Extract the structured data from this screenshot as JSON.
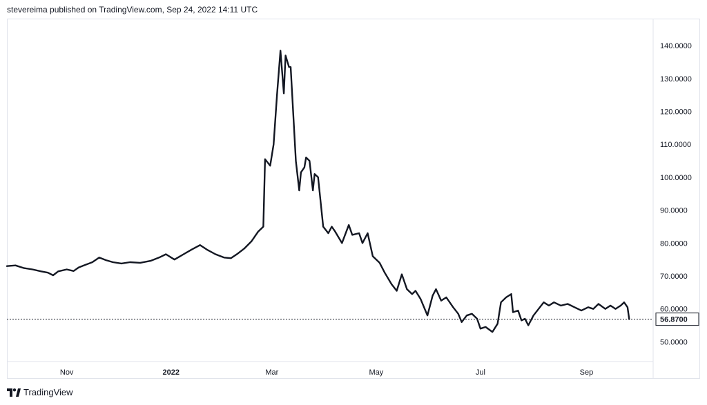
{
  "header": {
    "text": "stevereima published on TradingView.com, Sep 24, 2022 14:11 UTC"
  },
  "footer": {
    "brand": "TradingView"
  },
  "colors": {
    "line": "#131722",
    "axis_border": "#e0e3eb",
    "label_border": "#131722"
  },
  "chart_data": {
    "type": "line",
    "title": "",
    "xlabel": "",
    "ylabel": "",
    "grid": false,
    "ylim": [
      44,
      148
    ],
    "x_range": [
      "2021-09-27",
      "2022-10-10"
    ],
    "y_ticks": [
      "50.0000",
      "60.0000",
      "70.0000",
      "80.0000",
      "90.0000",
      "100.0000",
      "110.0000",
      "120.0000",
      "130.0000",
      "140.0000"
    ],
    "x_ticks": [
      {
        "date": "2021-11-01",
        "label": "Nov",
        "bold": false
      },
      {
        "date": "2022-01-01",
        "label": "2022",
        "bold": true
      },
      {
        "date": "2022-03-01",
        "label": "Mar",
        "bold": false
      },
      {
        "date": "2022-05-01",
        "label": "May",
        "bold": false
      },
      {
        "date": "2022-07-01",
        "label": "Jul",
        "bold": false
      },
      {
        "date": "2022-09-01",
        "label": "Sep",
        "bold": false
      }
    ],
    "last_value": 56.87,
    "last_value_label": "56.8700",
    "series": [
      {
        "values": [
          [
            "2021-09-27",
            73.0
          ],
          [
            "2021-10-02",
            73.2
          ],
          [
            "2021-10-07",
            72.4
          ],
          [
            "2021-10-12",
            72.0
          ],
          [
            "2021-10-17",
            71.4
          ],
          [
            "2021-10-21",
            71.0
          ],
          [
            "2021-10-24",
            70.2
          ],
          [
            "2021-10-27",
            71.4
          ],
          [
            "2021-11-01",
            72.0
          ],
          [
            "2021-11-05",
            71.5
          ],
          [
            "2021-11-08",
            72.6
          ],
          [
            "2021-11-12",
            73.4
          ],
          [
            "2021-11-16",
            74.2
          ],
          [
            "2021-11-20",
            75.6
          ],
          [
            "2021-11-24",
            74.8
          ],
          [
            "2021-11-28",
            74.2
          ],
          [
            "2021-12-03",
            73.8
          ],
          [
            "2021-12-08",
            74.2
          ],
          [
            "2021-12-14",
            74.0
          ],
          [
            "2021-12-20",
            74.6
          ],
          [
            "2021-12-25",
            75.6
          ],
          [
            "2021-12-29",
            76.6
          ],
          [
            "2022-01-03",
            75.0
          ],
          [
            "2022-01-08",
            76.5
          ],
          [
            "2022-01-13",
            78.0
          ],
          [
            "2022-01-18",
            79.4
          ],
          [
            "2022-01-22",
            78.0
          ],
          [
            "2022-01-27",
            76.6
          ],
          [
            "2022-02-01",
            75.6
          ],
          [
            "2022-02-05",
            75.4
          ],
          [
            "2022-02-09",
            76.8
          ],
          [
            "2022-02-13",
            78.4
          ],
          [
            "2022-02-17",
            80.5
          ],
          [
            "2022-02-21",
            83.5
          ],
          [
            "2022-02-24",
            85.0
          ],
          [
            "2022-02-25",
            105.5
          ],
          [
            "2022-02-28",
            103.5
          ],
          [
            "2022-03-02",
            110.0
          ],
          [
            "2022-03-04",
            125.0
          ],
          [
            "2022-03-06",
            138.5
          ],
          [
            "2022-03-08",
            125.5
          ],
          [
            "2022-03-09",
            137.0
          ],
          [
            "2022-03-11",
            133.5
          ],
          [
            "2022-03-12",
            133.5
          ],
          [
            "2022-03-15",
            105.0
          ],
          [
            "2022-03-17",
            96.0
          ],
          [
            "2022-03-18",
            101.5
          ],
          [
            "2022-03-20",
            103.0
          ],
          [
            "2022-03-21",
            106.0
          ],
          [
            "2022-03-23",
            105.0
          ],
          [
            "2022-03-25",
            96.0
          ],
          [
            "2022-03-26",
            101.0
          ],
          [
            "2022-03-28",
            100.0
          ],
          [
            "2022-03-31",
            85.0
          ],
          [
            "2022-04-03",
            83.0
          ],
          [
            "2022-04-05",
            85.0
          ],
          [
            "2022-04-07",
            83.5
          ],
          [
            "2022-04-11",
            80.0
          ],
          [
            "2022-04-15",
            85.5
          ],
          [
            "2022-04-17",
            82.5
          ],
          [
            "2022-04-21",
            83.0
          ],
          [
            "2022-04-23",
            80.0
          ],
          [
            "2022-04-26",
            83.0
          ],
          [
            "2022-04-29",
            76.0
          ],
          [
            "2022-05-03",
            74.0
          ],
          [
            "2022-05-06",
            71.0
          ],
          [
            "2022-05-10",
            67.5
          ],
          [
            "2022-05-13",
            65.5
          ],
          [
            "2022-05-16",
            70.5
          ],
          [
            "2022-05-19",
            66.0
          ],
          [
            "2022-05-22",
            64.5
          ],
          [
            "2022-05-24",
            65.5
          ],
          [
            "2022-05-27",
            63.0
          ],
          [
            "2022-05-31",
            58.0
          ],
          [
            "2022-06-03",
            64.0
          ],
          [
            "2022-06-05",
            66.0
          ],
          [
            "2022-06-08",
            62.5
          ],
          [
            "2022-06-11",
            63.5
          ],
          [
            "2022-06-15",
            60.5
          ],
          [
            "2022-06-18",
            58.5
          ],
          [
            "2022-06-20",
            56.0
          ],
          [
            "2022-06-23",
            58.0
          ],
          [
            "2022-06-26",
            58.5
          ],
          [
            "2022-06-29",
            57.0
          ],
          [
            "2022-07-01",
            54.0
          ],
          [
            "2022-07-04",
            54.5
          ],
          [
            "2022-07-08",
            53.0
          ],
          [
            "2022-07-11",
            55.5
          ],
          [
            "2022-07-13",
            62.0
          ],
          [
            "2022-07-16",
            63.5
          ],
          [
            "2022-07-19",
            64.5
          ],
          [
            "2022-07-20",
            59.0
          ],
          [
            "2022-07-23",
            59.5
          ],
          [
            "2022-07-25",
            56.5
          ],
          [
            "2022-07-27",
            57.0
          ],
          [
            "2022-07-29",
            55.0
          ],
          [
            "2022-08-01",
            58.0
          ],
          [
            "2022-08-04",
            60.0
          ],
          [
            "2022-08-07",
            62.0
          ],
          [
            "2022-08-10",
            61.0
          ],
          [
            "2022-08-13",
            62.0
          ],
          [
            "2022-08-17",
            61.0
          ],
          [
            "2022-08-21",
            61.5
          ],
          [
            "2022-08-25",
            60.5
          ],
          [
            "2022-08-29",
            59.5
          ],
          [
            "2022-09-02",
            60.5
          ],
          [
            "2022-09-05",
            60.0
          ],
          [
            "2022-09-08",
            61.5
          ],
          [
            "2022-09-12",
            60.0
          ],
          [
            "2022-09-15",
            61.0
          ],
          [
            "2022-09-18",
            60.0
          ],
          [
            "2022-09-21",
            61.0
          ],
          [
            "2022-09-23",
            62.0
          ],
          [
            "2022-09-25",
            60.5
          ],
          [
            "2022-09-26",
            56.87
          ]
        ]
      }
    ]
  }
}
